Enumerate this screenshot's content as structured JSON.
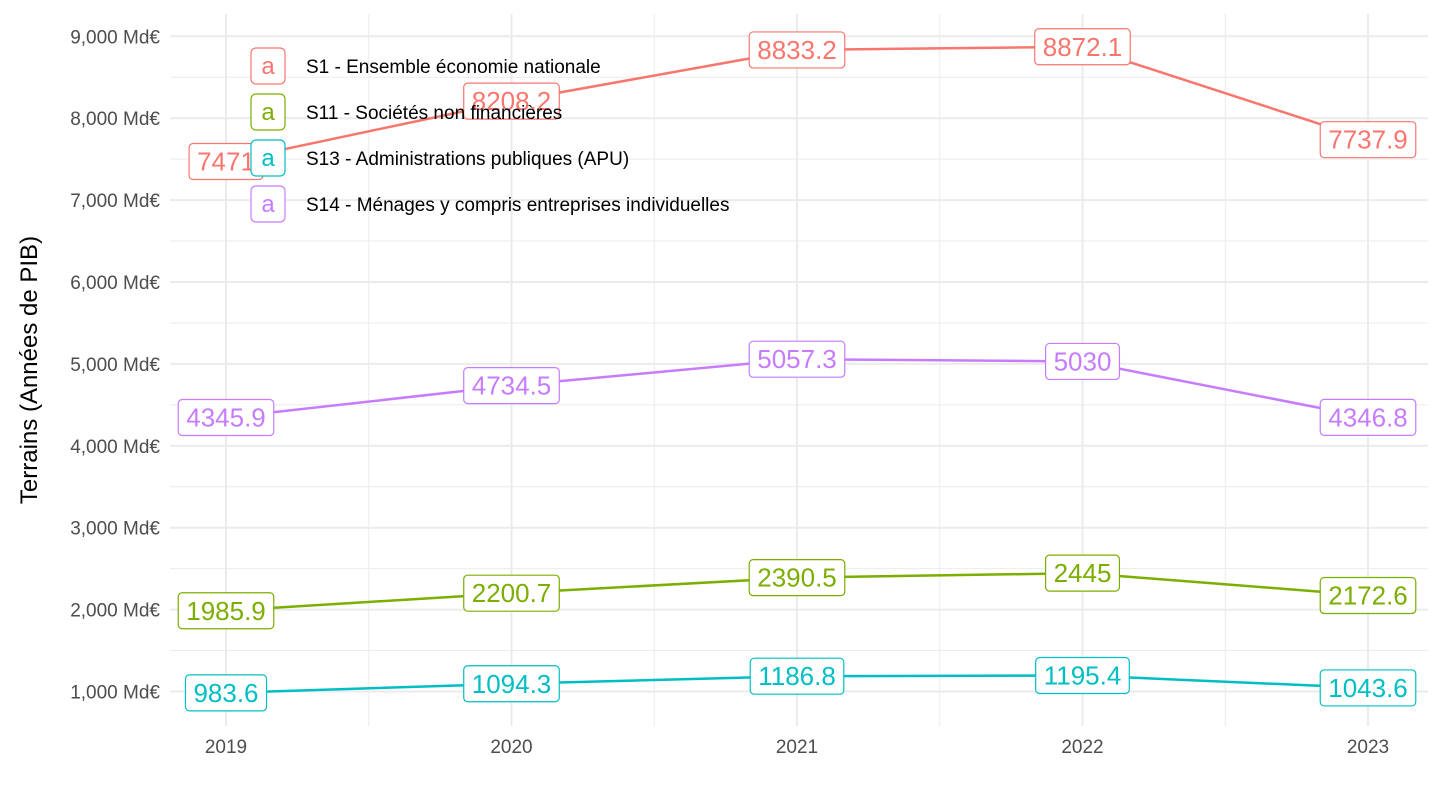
{
  "chart_data": {
    "type": "line",
    "title": "",
    "xlabel": "",
    "ylabel": "Terrains (Années de PIB)",
    "x": [
      "2019",
      "2020",
      "2021",
      "2022",
      "2023"
    ],
    "ylim": [
      650,
      9250
    ],
    "yticks": [
      1000,
      2000,
      3000,
      4000,
      5000,
      6000,
      7000,
      8000,
      9000
    ],
    "ytick_labels": [
      "1,000 Md€",
      "2,000 Md€",
      "3,000 Md€",
      "4,000 Md€",
      "5,000 Md€",
      "6,000 Md€",
      "7,000 Md€",
      "8,000 Md€",
      "9,000 Md€"
    ],
    "grid": true,
    "legend_position": "top-left inside",
    "legend_key_glyph": "a",
    "series": [
      {
        "name": "S1 - Ensemble économie nationale",
        "color": "#F8766D",
        "values": [
          7471,
          8208.2,
          8833.2,
          8872.1,
          7737.9
        ],
        "labels": [
          "7471",
          "8208.2",
          "8833.2",
          "8872.1",
          "7737.9"
        ]
      },
      {
        "name": "S11 - Sociétés non financières",
        "color": "#7CAE00",
        "values": [
          1985.9,
          2200.7,
          2390.5,
          2445,
          2172.6
        ],
        "labels": [
          "1985.9",
          "2200.7",
          "2390.5",
          "2445",
          "2172.6"
        ]
      },
      {
        "name": "S13 - Administrations publiques (APU)",
        "color": "#00BFC4",
        "values": [
          983.6,
          1094.3,
          1186.8,
          1195.4,
          1043.6
        ],
        "labels": [
          "983.6",
          "1094.3",
          "1186.8",
          "1195.4",
          "1043.6"
        ]
      },
      {
        "name": "S14 - Ménages y compris entreprises individuelles",
        "color": "#C77CFF",
        "values": [
          4345.9,
          4734.5,
          5057.3,
          5030,
          4346.8
        ],
        "labels": [
          "4345.9",
          "4734.5",
          "5057.3",
          "5030",
          "4346.8"
        ]
      }
    ]
  }
}
